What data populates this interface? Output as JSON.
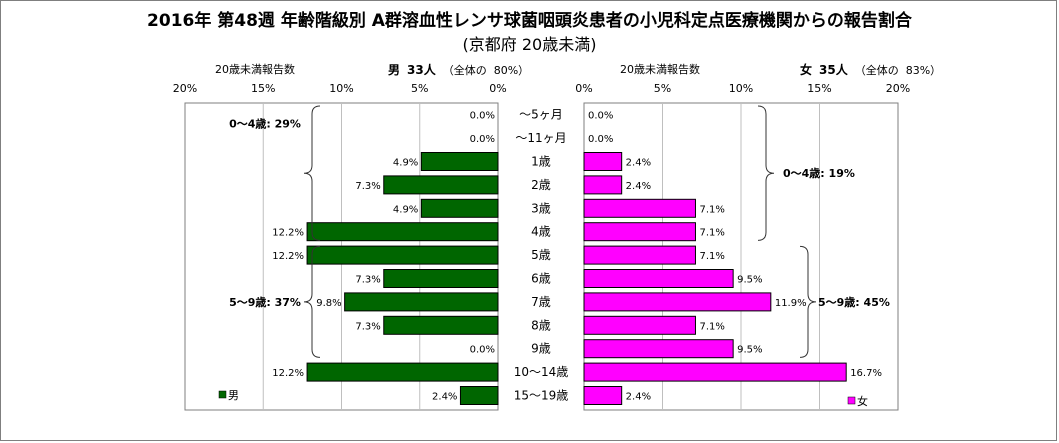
{
  "title": "2016年 第48週 年齢階級別 A群溶血性レンサ球菌咽頭炎患者の小児科定点医療機関からの報告割合",
  "subtitle": "(京都府 20歳未満)",
  "left_header": {
    "label": "20歳未満報告数",
    "sex": "男",
    "count": "33人",
    "share_prefix": "（全体の",
    "share_value": "80%）"
  },
  "right_header": {
    "label": "20歳未満報告数",
    "sex": "女",
    "count": "35人",
    "share_prefix": "（全体の",
    "share_value": "83%）"
  },
  "colors": {
    "male": "#006600",
    "female": "#ff00ff",
    "bar_border": "#000000",
    "plot_border": "#7f7f7f",
    "grid": "#bfbfbf",
    "frame": "#7f7f7f"
  },
  "chart_data": [
    {
      "type": "bar",
      "orientation": "horizontal",
      "direction": "right-to-left",
      "series": [
        {
          "name": "男",
          "values": [
            0.0,
            0.0,
            4.9,
            7.3,
            4.9,
            12.2,
            12.2,
            7.3,
            9.8,
            7.3,
            0.0,
            12.2,
            2.4
          ],
          "labels": [
            "0.0%",
            "0.0%",
            "4.9%",
            "7.3%",
            "4.9%",
            "12.2%",
            "12.2%",
            "7.3%",
            "9.8%",
            "7.3%",
            "0.0%",
            "12.2%",
            "2.4%"
          ]
        }
      ],
      "xlim": [
        0,
        20
      ],
      "ticks": [
        "0%",
        "5%",
        "10%",
        "15%",
        "20%"
      ],
      "grid": true,
      "legend": "bottom-left",
      "groups": [
        {
          "label": "0～4歳: 29%",
          "from": 0,
          "to": 5
        },
        {
          "label": "5～9歳: 37%",
          "from": 6,
          "to": 10
        }
      ]
    },
    {
      "type": "bar",
      "orientation": "horizontal",
      "direction": "left-to-right",
      "series": [
        {
          "name": "女",
          "values": [
            0.0,
            0.0,
            2.4,
            2.4,
            7.1,
            7.1,
            7.1,
            9.5,
            11.9,
            7.1,
            9.5,
            16.7,
            2.4
          ],
          "labels": [
            "0.0%",
            "0.0%",
            "2.4%",
            "2.4%",
            "7.1%",
            "7.1%",
            "7.1%",
            "9.5%",
            "11.9%",
            "7.1%",
            "9.5%",
            "16.7%",
            "2.4%"
          ]
        }
      ],
      "xlim": [
        0,
        20
      ],
      "ticks": [
        "0%",
        "5%",
        "10%",
        "15%",
        "20%"
      ],
      "grid": true,
      "legend": "bottom-right",
      "groups": [
        {
          "label": "0～4歳: 19%",
          "from": 0,
          "to": 5
        },
        {
          "label": "5～9歳: 45%",
          "from": 6,
          "to": 10
        }
      ]
    }
  ],
  "categories": [
    "～5ヶ月",
    "～11ヶ月",
    "1歳",
    "2歳",
    "3歳",
    "4歳",
    "5歳",
    "6歳",
    "7歳",
    "8歳",
    "9歳",
    "10～14歳",
    "15～19歳"
  ]
}
